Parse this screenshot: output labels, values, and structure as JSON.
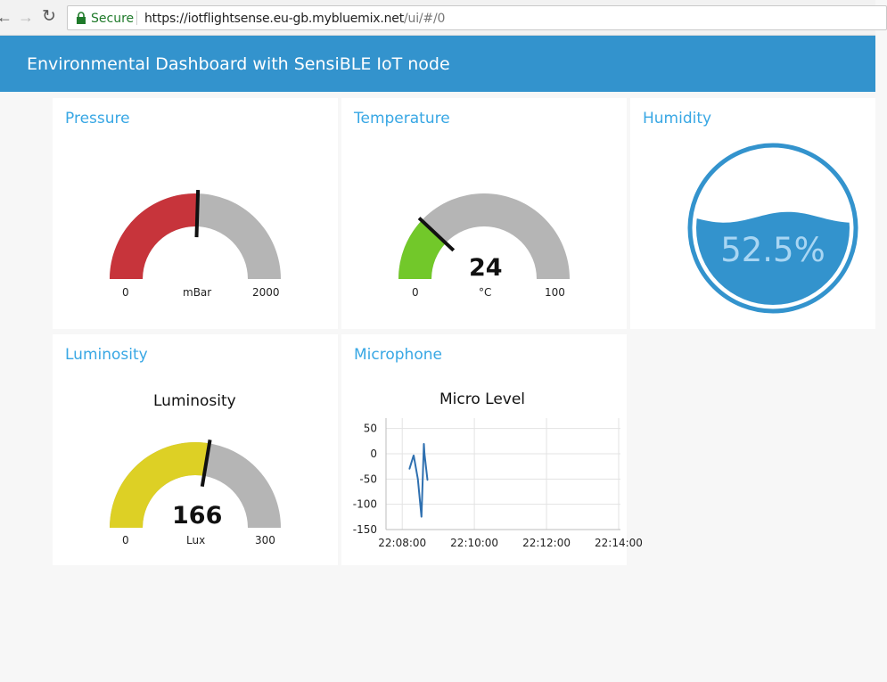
{
  "browser": {
    "secure_label": "Secure",
    "url_host": "https://iotflightsense.eu-gb.mybluemix.net",
    "url_path": "/ui/#/0"
  },
  "app": {
    "title": "Environmental Dashboard with SensiBLE IoT node"
  },
  "colors": {
    "header": "#3393cd",
    "card_title": "#38a7e4",
    "pressure_fill": "#c7343b",
    "temperature_fill": "#72c82a",
    "luminosity_fill": "#ddd025",
    "gauge_track": "#b5b5b5",
    "humidity": "#3393cd"
  },
  "pressure": {
    "title": "Pressure",
    "min": "0",
    "max": "2000",
    "unit": "mBar",
    "level": 0.51
  },
  "temperature": {
    "title": "Temperature",
    "value": "24",
    "unit": "°C",
    "min": "0",
    "max": "100",
    "level": 0.24
  },
  "humidity": {
    "title": "Humidity",
    "value": "52.5%",
    "level": 0.525
  },
  "luminosity": {
    "title": "Luminosity",
    "subtitle": "Luminosity",
    "value": "166",
    "unit": "Lux",
    "min": "0",
    "max": "300",
    "level": 0.553
  },
  "microphone": {
    "title": "Microphone",
    "chart_data": {
      "type": "line",
      "title": "Micro Level",
      "xlabel": "",
      "ylabel": "",
      "x_ticks": [
        "22:08:00",
        "22:10:00",
        "22:12:00",
        "22:14:00"
      ],
      "x_tick_seconds": [
        0,
        120,
        240,
        360
      ],
      "xlim_seconds": [
        -27,
        363
      ],
      "y_ticks": [
        50,
        0,
        -50,
        -100,
        -150
      ],
      "ylim": [
        -150,
        60
      ],
      "grid": true,
      "series": [
        {
          "x_seconds": [
            12,
            19,
            26,
            32,
            36,
            37,
            42
          ],
          "values": [
            -30,
            -3,
            -50,
            -125,
            20,
            0,
            -52
          ],
          "color": "#2f70b0"
        }
      ]
    }
  }
}
